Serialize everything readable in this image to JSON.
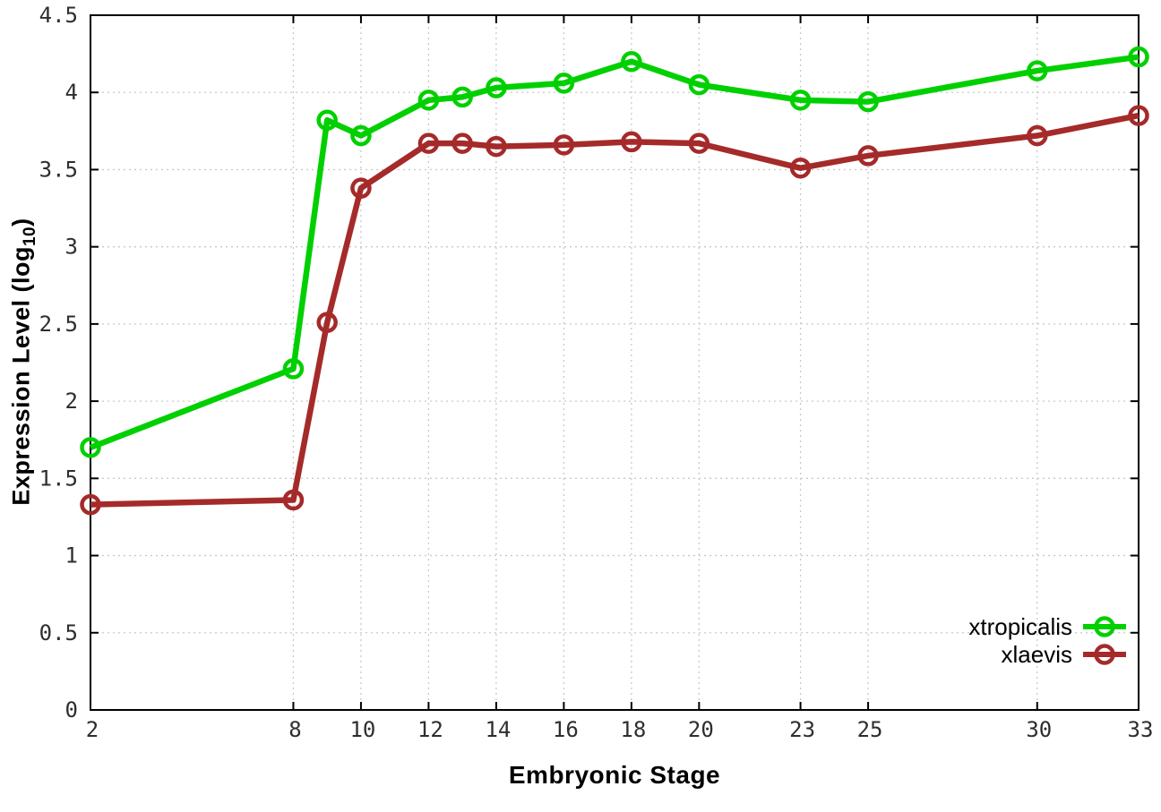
{
  "chart_data": {
    "type": "line",
    "title": "",
    "xlabel": "Embryonic Stage",
    "ylabel": "Expression Level (log10)",
    "ylabel_parts": {
      "prefix": "Expression Level (log",
      "sub": "10",
      "suffix": ")"
    },
    "x": [
      2,
      8,
      9,
      10,
      12,
      13,
      14,
      16,
      18,
      20,
      23,
      25,
      30,
      33
    ],
    "series": [
      {
        "name": "xtropicalis",
        "color": "#00d000",
        "values": [
          1.7,
          2.21,
          3.82,
          3.72,
          3.95,
          3.97,
          4.03,
          4.06,
          4.2,
          4.05,
          3.95,
          3.94,
          4.14,
          4.23
        ]
      },
      {
        "name": "xlaevis",
        "color": "#a52a2a",
        "values": [
          1.33,
          1.36,
          2.51,
          3.38,
          3.67,
          3.67,
          3.65,
          3.66,
          3.68,
          3.67,
          3.51,
          3.59,
          3.72,
          3.85
        ]
      }
    ],
    "xlim": [
      2,
      33
    ],
    "ylim": [
      0,
      4.5
    ],
    "xticks": [
      2,
      8,
      10,
      12,
      14,
      16,
      18,
      20,
      23,
      25,
      30,
      33
    ],
    "xtick_labels": [
      "2",
      "8",
      "10",
      "12",
      "14",
      "16",
      "18",
      "20",
      "23",
      "25",
      "30",
      "33"
    ],
    "yticks": [
      0,
      0.5,
      1,
      1.5,
      2,
      2.5,
      3,
      3.5,
      4,
      4.5
    ],
    "ytick_labels": [
      "0",
      "0.5",
      "1",
      "1.5",
      "2",
      "2.5",
      "3",
      "3.5",
      "4",
      "4.5"
    ],
    "grid": true,
    "legend_position": "bottom-right",
    "marker": "open-circle",
    "colors": {
      "background": "#ffffff",
      "axis": "#000000",
      "grid": "#c9c9c9",
      "tick_label": "#2e2e2e"
    }
  }
}
